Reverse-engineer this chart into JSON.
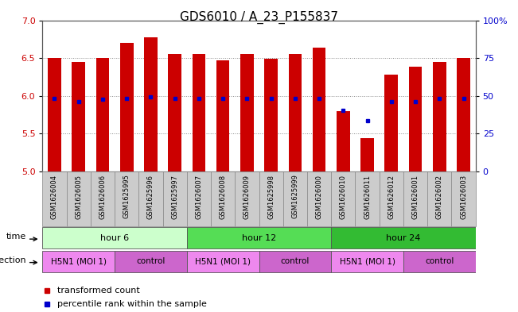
{
  "title": "GDS6010 / A_23_P155837",
  "samples": [
    "GSM1626004",
    "GSM1626005",
    "GSM1626006",
    "GSM1625995",
    "GSM1625996",
    "GSM1625997",
    "GSM1626007",
    "GSM1626008",
    "GSM1626009",
    "GSM1625998",
    "GSM1625999",
    "GSM1626000",
    "GSM1626010",
    "GSM1626011",
    "GSM1626012",
    "GSM1626001",
    "GSM1626002",
    "GSM1626003"
  ],
  "bar_values": [
    6.5,
    6.45,
    6.5,
    6.7,
    6.78,
    6.55,
    6.55,
    6.47,
    6.55,
    6.49,
    6.55,
    6.64,
    5.8,
    5.44,
    6.28,
    6.39,
    6.45,
    6.5
  ],
  "dot_values": [
    5.97,
    5.93,
    5.96,
    5.97,
    5.99,
    5.97,
    5.97,
    5.97,
    5.97,
    5.97,
    5.97,
    5.97,
    5.81,
    5.67,
    5.92,
    5.93,
    5.97,
    5.97
  ],
  "ylim_left": [
    5.0,
    7.0
  ],
  "ylim_right": [
    0,
    100
  ],
  "yticks_left": [
    5.0,
    5.5,
    6.0,
    6.5,
    7.0
  ],
  "yticks_right": [
    0,
    25,
    50,
    75,
    100
  ],
  "ytick_labels_right": [
    "0",
    "25",
    "50",
    "75",
    "100%"
  ],
  "bar_color": "#cc0000",
  "dot_color": "#0000cc",
  "bar_bottom": 5.0,
  "time_groups": [
    {
      "label": "hour 6",
      "start": 0,
      "end": 6,
      "color": "#ccffcc"
    },
    {
      "label": "hour 12",
      "start": 6,
      "end": 12,
      "color": "#55dd55"
    },
    {
      "label": "hour 24",
      "start": 12,
      "end": 18,
      "color": "#33bb33"
    }
  ],
  "infection_groups": [
    {
      "label": "H5N1 (MOI 1)",
      "start": 0,
      "end": 3,
      "color": "#ee88ee"
    },
    {
      "label": "control",
      "start": 3,
      "end": 6,
      "color": "#cc66cc"
    },
    {
      "label": "H5N1 (MOI 1)",
      "start": 6,
      "end": 9,
      "color": "#ee88ee"
    },
    {
      "label": "control",
      "start": 9,
      "end": 12,
      "color": "#cc66cc"
    },
    {
      "label": "H5N1 (MOI 1)",
      "start": 12,
      "end": 15,
      "color": "#ee88ee"
    },
    {
      "label": "control",
      "start": 15,
      "end": 18,
      "color": "#cc66cc"
    }
  ],
  "time_label": "time",
  "infection_label": "infection",
  "legend_bar_label": "transformed count",
  "legend_dot_label": "percentile rank within the sample",
  "bar_width": 0.55,
  "bg_color": "#ffffff",
  "plot_bg": "#ffffff",
  "grid_color": "#888888",
  "grid_lines": [
    5.5,
    6.0,
    6.5
  ],
  "tick_label_color_left": "#cc0000",
  "tick_label_color_right": "#0000cc",
  "tick_bg_color": "#cccccc"
}
